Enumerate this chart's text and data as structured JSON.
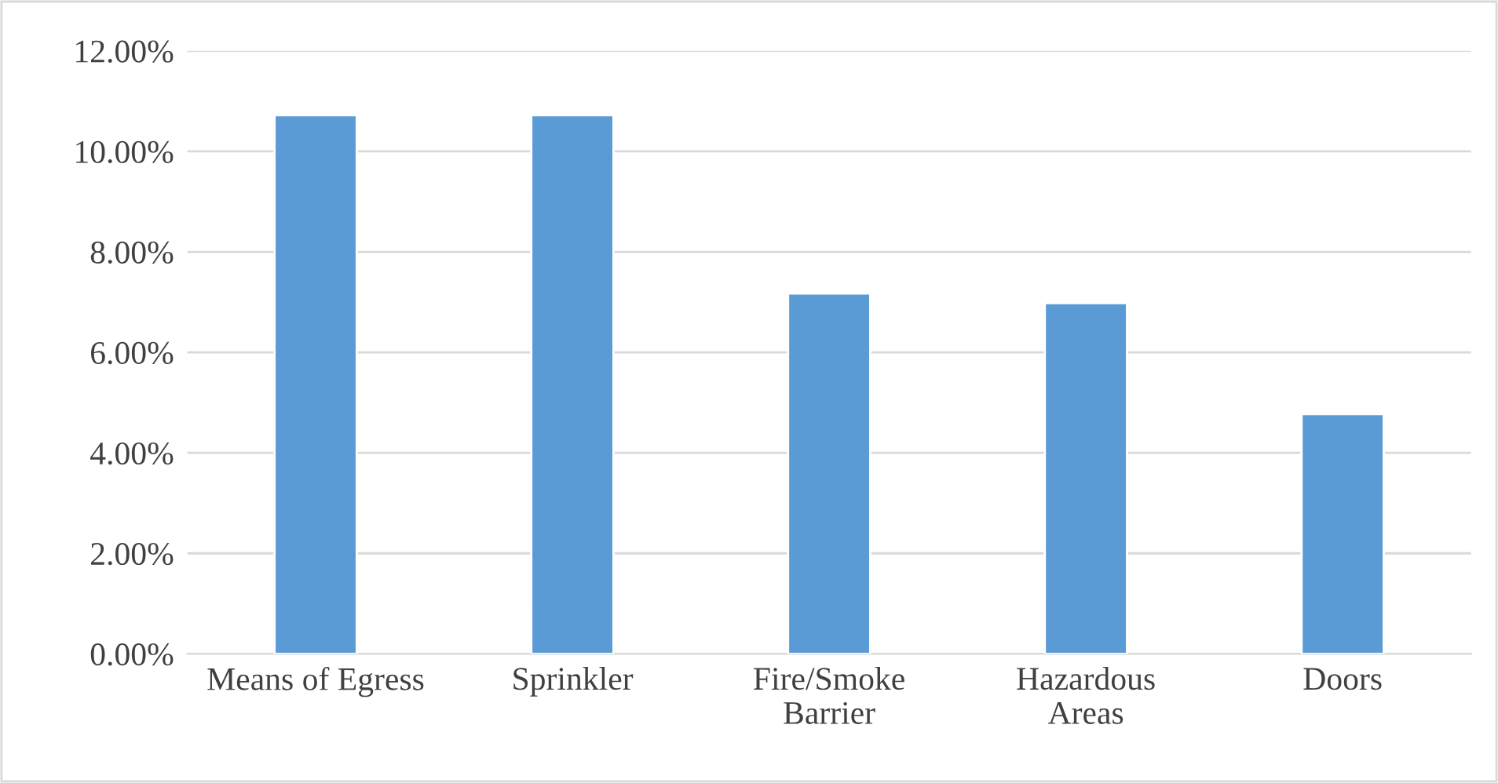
{
  "chart_data": {
    "type": "bar",
    "categories": [
      "Means of Egress",
      "Sprinkler",
      "Fire/Smoke\nBarrier",
      "Hazardous\nAreas",
      "Doors"
    ],
    "values": [
      10.72,
      10.72,
      7.17,
      6.98,
      4.77
    ],
    "color": "#5b9bd5",
    "ylim": [
      0,
      12
    ],
    "yticks": [
      {
        "value": 0,
        "label": "0.00%"
      },
      {
        "value": 2,
        "label": "2.00%"
      },
      {
        "value": 4,
        "label": "4.00%"
      },
      {
        "value": 6,
        "label": "6.00%"
      },
      {
        "value": 8,
        "label": "8.00%"
      },
      {
        "value": 10,
        "label": "10.00%"
      },
      {
        "value": 12,
        "label": "12.00%"
      }
    ],
    "grid": "y",
    "legend": false
  }
}
